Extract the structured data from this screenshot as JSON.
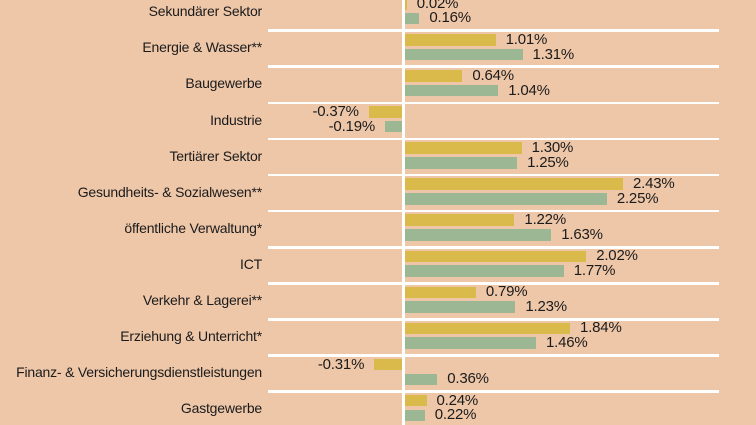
{
  "colors": {
    "background": "#eec7a9",
    "bar_yellow": "#d9ba4a",
    "bar_green": "#9cb794",
    "grid_line": "#ffffff",
    "text": "#1b1b1b"
  },
  "chart_data": {
    "type": "bar",
    "orientation": "horizontal",
    "unit": "%",
    "grid": "white row separators, white zero axis",
    "legend_position": "none",
    "xlim": [
      -0.6,
      3.9
    ],
    "categories": [
      "Sekundärer Sektor",
      "Energie & Wasser**",
      "Baugewerbe",
      "Industrie",
      "Tertiärer Sektor",
      "Gesundheits- & Sozialwesen**",
      "öffentliche Verwaltung*",
      "ICT",
      "Verkehr & Lagerei**",
      "Erziehung & Unterricht*",
      "Finanz- & Versicherungsdienstleistungen",
      "Gastgewerbe"
    ],
    "series": [
      {
        "name": "series-yellow",
        "color": "#d9ba4a",
        "values": [
          0.02,
          1.01,
          0.64,
          -0.37,
          1.3,
          2.43,
          1.22,
          2.02,
          0.79,
          1.84,
          -0.31,
          0.24
        ],
        "labels": [
          "0.02%",
          "1.01%",
          "0.64%",
          "-0.37%",
          "1.30%",
          "2.43%",
          "1.22%",
          "2.02%",
          "0.79%",
          "1.84%",
          "-0.31%",
          "0.24%"
        ]
      },
      {
        "name": "series-green",
        "color": "#9cb794",
        "values": [
          0.16,
          1.31,
          1.04,
          -0.19,
          1.25,
          2.25,
          1.63,
          1.77,
          1.23,
          1.46,
          0.36,
          0.22
        ],
        "labels": [
          "0.16%",
          "1.31%",
          "1.04%",
          "-0.19%",
          "1.25%",
          "2.25%",
          "1.63%",
          "1.77%",
          "1.23%",
          "1.46%",
          "0.36%",
          "0.22%"
        ]
      }
    ]
  }
}
